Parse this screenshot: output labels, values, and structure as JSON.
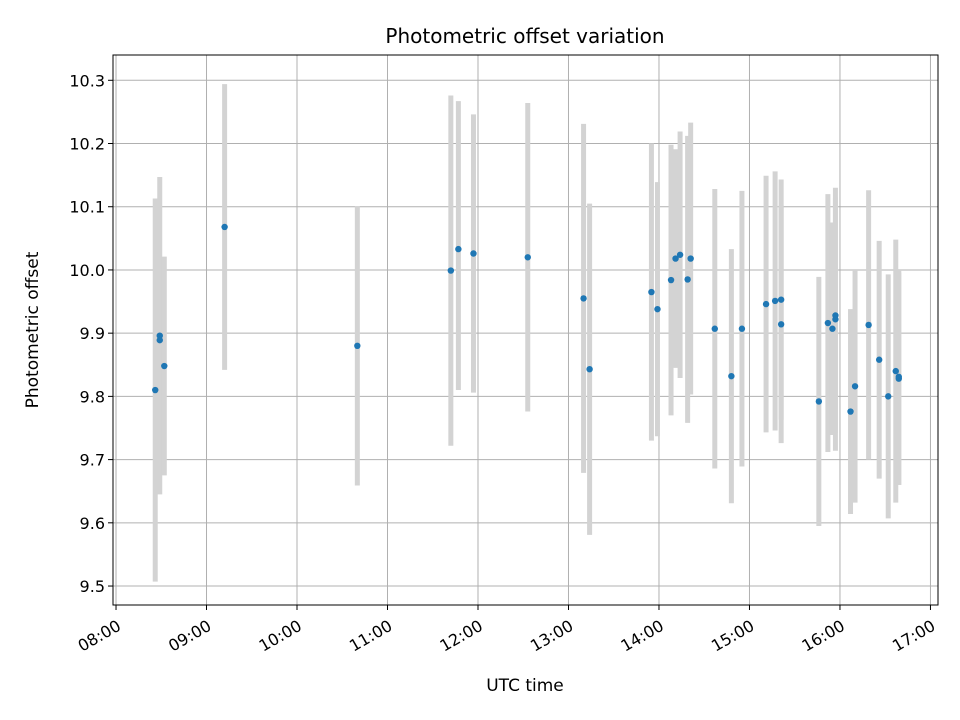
{
  "chart_data": {
    "type": "scatter",
    "title": "Photometric offset variation",
    "xlabel": "UTC time",
    "ylabel": "Photometric offset",
    "x_ticks": [
      "08:00",
      "09:00",
      "10:00",
      "11:00",
      "12:00",
      "13:00",
      "14:00",
      "15:00",
      "16:00",
      "17:00"
    ],
    "x_range": [
      "07:58",
      "17:05"
    ],
    "ylim": [
      9.47,
      10.34
    ],
    "y_ticks": [
      "9.5",
      "9.6",
      "9.7",
      "9.8",
      "9.9",
      "10.0",
      "10.1",
      "10.2",
      "10.3"
    ],
    "grid": true,
    "colors": {
      "point": "#1f77b4",
      "errorbar": "#d3d3d3",
      "grid": "#b0b0b0"
    },
    "points": [
      {
        "t": "08:26",
        "y": 9.81,
        "lo": 9.507,
        "hi": 10.113
      },
      {
        "t": "08:29",
        "y": 9.896,
        "lo": 9.645,
        "hi": 10.147
      },
      {
        "t": "08:29",
        "y": 9.889,
        "lo": 9.8,
        "hi": 9.98
      },
      {
        "t": "08:32",
        "y": 9.848,
        "lo": 9.675,
        "hi": 10.021
      },
      {
        "t": "09:12",
        "y": 10.068,
        "lo": 9.842,
        "hi": 10.294
      },
      {
        "t": "10:40",
        "y": 9.88,
        "lo": 9.659,
        "hi": 10.101
      },
      {
        "t": "11:42",
        "y": 9.999,
        "lo": 9.722,
        "hi": 10.276
      },
      {
        "t": "11:47",
        "y": 10.033,
        "lo": 9.81,
        "hi": 10.267
      },
      {
        "t": "11:57",
        "y": 10.026,
        "lo": 9.806,
        "hi": 10.246
      },
      {
        "t": "12:33",
        "y": 10.02,
        "lo": 9.776,
        "hi": 10.264
      },
      {
        "t": "13:10",
        "y": 9.955,
        "lo": 9.679,
        "hi": 10.231
      },
      {
        "t": "13:14",
        "y": 9.843,
        "lo": 9.581,
        "hi": 10.105
      },
      {
        "t": "13:55",
        "y": 9.965,
        "lo": 9.73,
        "hi": 10.2
      },
      {
        "t": "13:59",
        "y": 9.938,
        "lo": 9.737,
        "hi": 10.139
      },
      {
        "t": "14:08",
        "y": 9.984,
        "lo": 9.77,
        "hi": 10.198
      },
      {
        "t": "14:11",
        "y": 10.018,
        "lo": 9.845,
        "hi": 10.191
      },
      {
        "t": "14:14",
        "y": 10.024,
        "lo": 9.829,
        "hi": 10.219
      },
      {
        "t": "14:19",
        "y": 9.985,
        "lo": 9.758,
        "hi": 10.212
      },
      {
        "t": "14:21",
        "y": 10.018,
        "lo": 9.803,
        "hi": 10.233
      },
      {
        "t": "14:37",
        "y": 9.907,
        "lo": 9.686,
        "hi": 10.128
      },
      {
        "t": "14:48",
        "y": 9.832,
        "lo": 9.631,
        "hi": 10.033
      },
      {
        "t": "14:55",
        "y": 9.907,
        "lo": 9.689,
        "hi": 10.125
      },
      {
        "t": "15:11",
        "y": 9.946,
        "lo": 9.743,
        "hi": 10.149
      },
      {
        "t": "15:17",
        "y": 9.951,
        "lo": 9.746,
        "hi": 10.156
      },
      {
        "t": "15:21",
        "y": 9.953,
        "lo": 9.763,
        "hi": 10.143
      },
      {
        "t": "15:21",
        "y": 9.914,
        "lo": 9.726,
        "hi": 10.102
      },
      {
        "t": "15:46",
        "y": 9.792,
        "lo": 9.595,
        "hi": 9.989
      },
      {
        "t": "15:52",
        "y": 9.916,
        "lo": 9.712,
        "hi": 10.12
      },
      {
        "t": "15:55",
        "y": 9.907,
        "lo": 9.739,
        "hi": 10.075
      },
      {
        "t": "15:57",
        "y": 9.928,
        "lo": 9.742,
        "hi": 10.114
      },
      {
        "t": "15:57",
        "y": 9.922,
        "lo": 9.714,
        "hi": 10.13
      },
      {
        "t": "16:07",
        "y": 9.776,
        "lo": 9.614,
        "hi": 9.938
      },
      {
        "t": "16:10",
        "y": 9.816,
        "lo": 9.632,
        "hi": 10.0
      },
      {
        "t": "16:19",
        "y": 9.913,
        "lo": 9.7,
        "hi": 10.126
      },
      {
        "t": "16:26",
        "y": 9.858,
        "lo": 9.67,
        "hi": 10.046
      },
      {
        "t": "16:32",
        "y": 9.8,
        "lo": 9.607,
        "hi": 9.993
      },
      {
        "t": "16:37",
        "y": 9.84,
        "lo": 9.632,
        "hi": 10.048
      },
      {
        "t": "16:39",
        "y": 9.831,
        "lo": 9.66,
        "hi": 10.0
      },
      {
        "t": "16:39",
        "y": 9.828,
        "lo": 9.66,
        "hi": 9.996
      }
    ]
  }
}
